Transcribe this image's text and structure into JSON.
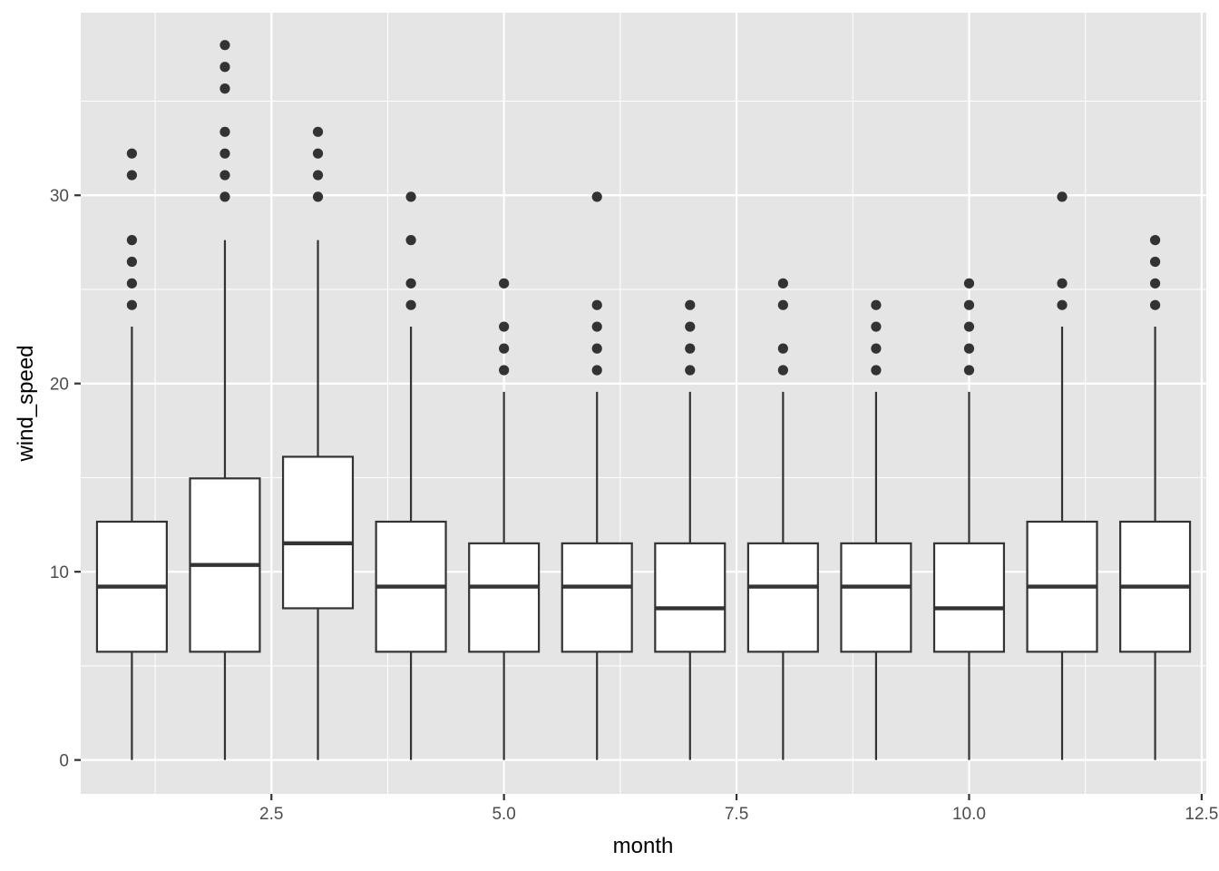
{
  "chart_data": {
    "type": "boxplot",
    "title": "",
    "xlabel": "month",
    "ylabel": "wind_speed",
    "xlim": [
      0.45,
      12.55
    ],
    "ylim": [
      -1.8,
      39.7
    ],
    "x_ticks": [
      2.5,
      5.0,
      7.5,
      10.0,
      12.5
    ],
    "x_tick_labels": [
      "2.5",
      "5.0",
      "7.5",
      "10.0",
      "12.5"
    ],
    "x_minor_ticks": [
      1.25,
      3.75,
      6.25,
      8.75,
      11.25
    ],
    "y_ticks": [
      0,
      10,
      20,
      30
    ],
    "y_tick_labels": [
      "0",
      "10",
      "20",
      "30"
    ],
    "y_minor_ticks": [
      5,
      15,
      25,
      35
    ],
    "grid": true,
    "legend": "none",
    "box_width": 0.75,
    "colors": {
      "panel_background": "#e5e5e5",
      "grid_line": "#ffffff",
      "box_fill": "#ffffff",
      "box_stroke": "#333333",
      "outlier": "#333333"
    },
    "boxes": [
      {
        "x": 1,
        "min": 0,
        "q1": 5.75,
        "median": 9.21,
        "q3": 12.66,
        "max": 23.02,
        "outliers": [
          24.17,
          25.32,
          26.47,
          27.62,
          31.07,
          32.22
        ]
      },
      {
        "x": 2,
        "min": 0,
        "q1": 5.75,
        "median": 10.36,
        "q3": 14.96,
        "max": 27.62,
        "outliers": [
          29.92,
          31.07,
          32.22,
          33.37,
          35.67,
          36.82,
          37.98
        ]
      },
      {
        "x": 3,
        "min": 0,
        "q1": 8.06,
        "median": 11.51,
        "q3": 16.11,
        "max": 27.62,
        "outliers": [
          29.92,
          31.07,
          32.22,
          33.37
        ]
      },
      {
        "x": 4,
        "min": 0,
        "q1": 5.75,
        "median": 9.21,
        "q3": 12.66,
        "max": 23.02,
        "outliers": [
          24.17,
          25.32,
          27.62,
          29.92
        ]
      },
      {
        "x": 5,
        "min": 0,
        "q1": 5.75,
        "median": 9.21,
        "q3": 11.51,
        "max": 19.56,
        "outliers": [
          20.71,
          21.86,
          23.02,
          25.32
        ]
      },
      {
        "x": 6,
        "min": 0,
        "q1": 5.75,
        "median": 9.21,
        "q3": 11.51,
        "max": 19.56,
        "outliers": [
          20.71,
          21.86,
          23.02,
          24.17,
          29.92
        ]
      },
      {
        "x": 7,
        "min": 0,
        "q1": 5.75,
        "median": 8.06,
        "q3": 11.51,
        "max": 19.56,
        "outliers": [
          20.71,
          21.86,
          23.02,
          24.17
        ]
      },
      {
        "x": 8,
        "min": 0,
        "q1": 5.75,
        "median": 9.21,
        "q3": 11.51,
        "max": 19.56,
        "outliers": [
          20.71,
          21.86,
          24.17,
          25.32
        ]
      },
      {
        "x": 9,
        "min": 0,
        "q1": 5.75,
        "median": 9.21,
        "q3": 11.51,
        "max": 19.56,
        "outliers": [
          20.71,
          21.86,
          23.02,
          24.17
        ]
      },
      {
        "x": 10,
        "min": 0,
        "q1": 5.75,
        "median": 8.06,
        "q3": 11.51,
        "max": 19.56,
        "outliers": [
          20.71,
          21.86,
          23.02,
          24.17,
          25.32
        ]
      },
      {
        "x": 11,
        "min": 0,
        "q1": 5.75,
        "median": 9.21,
        "q3": 12.66,
        "max": 23.02,
        "outliers": [
          24.17,
          25.32,
          29.92
        ]
      },
      {
        "x": 12,
        "min": 0,
        "q1": 5.75,
        "median": 9.21,
        "q3": 12.66,
        "max": 23.02,
        "outliers": [
          24.17,
          25.32,
          26.47,
          27.62
        ]
      }
    ]
  }
}
